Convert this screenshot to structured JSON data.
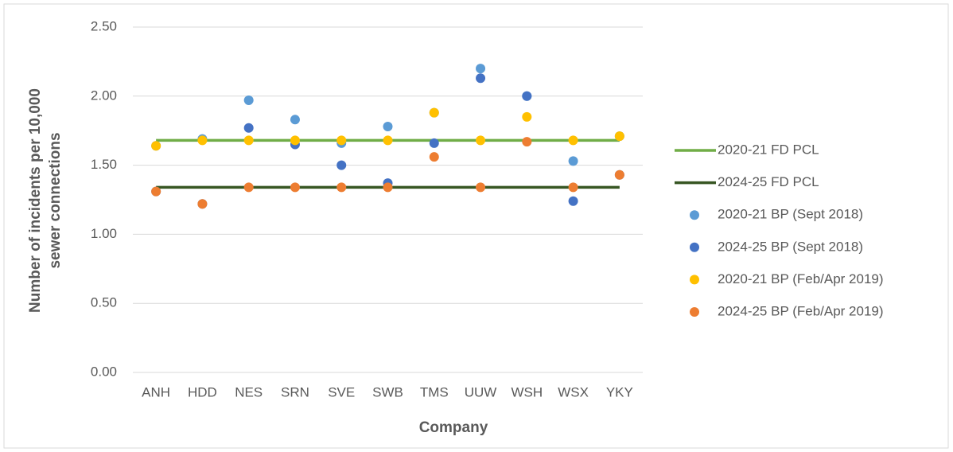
{
  "chart_data": {
    "type": "line-scatter",
    "x_label": "Company",
    "y_label": [
      "Number of incidents per 10,000",
      "sewer connections"
    ],
    "categories": [
      "ANH",
      "HDD",
      "NES",
      "SRN",
      "SVE",
      "SWB",
      "TMS",
      "UUW",
      "WSH",
      "WSX",
      "YKY"
    ],
    "ylim": [
      0,
      2.5
    ],
    "yticks": [
      {
        "value": 0,
        "label": "0.00"
      },
      {
        "value": 0.5,
        "label": "0.50"
      },
      {
        "value": 1,
        "label": "1.00"
      },
      {
        "value": 1.5,
        "label": "1.50"
      },
      {
        "value": 2,
        "label": "2.00"
      },
      {
        "value": 2.5,
        "label": "2.50"
      }
    ],
    "grid": true,
    "legend": "right",
    "series": [
      {
        "name": "2020-21 FD PCL",
        "kind": "line",
        "color": "#70ad47",
        "values": [
          1.68,
          1.68,
          1.68,
          1.68,
          1.68,
          1.68,
          1.68,
          1.68,
          1.68,
          1.68,
          1.68
        ]
      },
      {
        "name": "2024-25 FD PCL",
        "kind": "line",
        "color": "#375623",
        "values": [
          1.34,
          1.34,
          1.34,
          1.34,
          1.34,
          1.34,
          1.34,
          1.34,
          1.34,
          1.34,
          1.34
        ]
      },
      {
        "name": "2020-21 BP (Sept 2018)",
        "kind": "scatter",
        "color": "#5b9bd5",
        "values": [
          1.64,
          1.69,
          1.97,
          1.83,
          1.66,
          1.78,
          1.88,
          2.2,
          2.0,
          1.53,
          1.71
        ]
      },
      {
        "name": "2024-25 BP (Sept 2018)",
        "kind": "scatter",
        "color": "#4472c4",
        "values": [
          1.31,
          1.22,
          1.77,
          1.65,
          1.5,
          1.37,
          1.66,
          2.13,
          2.0,
          1.24,
          1.43
        ]
      },
      {
        "name": "2020-21 BP (Feb/Apr 2019)",
        "kind": "scatter",
        "color": "#ffc000",
        "values": [
          1.64,
          1.68,
          1.68,
          1.68,
          1.68,
          1.68,
          1.88,
          1.68,
          1.85,
          1.68,
          1.71
        ]
      },
      {
        "name": "2024-25 BP (Feb/Apr 2019)",
        "kind": "scatter",
        "color": "#ed7d31",
        "values": [
          1.31,
          1.22,
          1.34,
          1.34,
          1.34,
          1.34,
          1.56,
          1.34,
          1.67,
          1.34,
          1.43
        ]
      }
    ]
  }
}
